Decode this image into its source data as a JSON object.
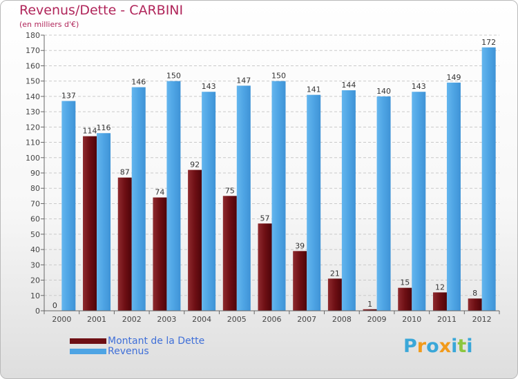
{
  "header": {
    "title": "Revenus/Dette - CARBINI",
    "subtitle": "(en milliers d'€)"
  },
  "legend": {
    "items": [
      {
        "label": "Montant de la Dette",
        "color": "#6e0f14"
      },
      {
        "label": "Revenus",
        "color": "#4ea4e4"
      }
    ]
  },
  "logo": {
    "text": "Proxiti",
    "letters": [
      {
        "ch": "P",
        "color": "#3aa7d8"
      },
      {
        "ch": "r",
        "color": "#f29a1a"
      },
      {
        "ch": "o",
        "color": "#3aa7d8"
      },
      {
        "ch": "x",
        "color": "#f29a1a"
      },
      {
        "ch": "i",
        "color": "#3aa7d8"
      },
      {
        "ch": "t",
        "color": "#8cc63f"
      },
      {
        "ch": "i",
        "color": "#3aa7d8"
      }
    ]
  },
  "chart_data": {
    "type": "bar",
    "title": "Revenus/Dette - CARBINI",
    "subtitle": "(en milliers d'€)",
    "categories": [
      "2000",
      "2001",
      "2002",
      "2003",
      "2004",
      "2005",
      "2006",
      "2007",
      "2008",
      "2009",
      "2010",
      "2011",
      "2012"
    ],
    "series": [
      {
        "name": "Montant de la Dette",
        "color": "#6e0f14",
        "values": [
          0,
          114,
          87,
          74,
          92,
          75,
          57,
          39,
          21,
          1,
          15,
          12,
          8
        ]
      },
      {
        "name": "Revenus",
        "color": "#4ea4e4",
        "values": [
          137,
          116,
          146,
          150,
          143,
          147,
          150,
          141,
          144,
          140,
          143,
          149,
          172
        ]
      }
    ],
    "ylim": [
      0,
      180
    ],
    "yticks": [
      0,
      10,
      20,
      30,
      40,
      50,
      60,
      70,
      80,
      90,
      100,
      110,
      120,
      130,
      140,
      150,
      160,
      170,
      180
    ],
    "grid": true,
    "legend_position": "bottom-left"
  }
}
